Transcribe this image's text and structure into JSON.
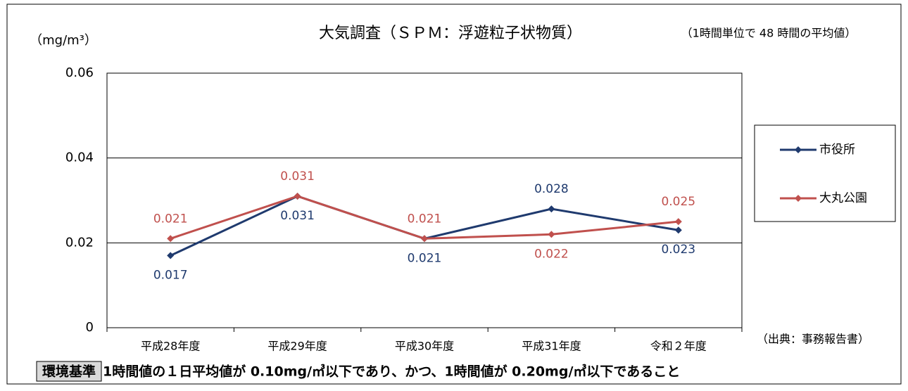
{
  "chart_data": {
    "type": "line",
    "title": "大気調査（ＳＰＭ：浮遊粒子状物質）",
    "subtitle": "（1時間単位で 48 時間の平均値）",
    "y_label": "（mg/m³）",
    "source": "（出典：事務報告書）",
    "note_tag": "環境基準",
    "note": "1時間値の１日平均値が 0.10mg/㎥以下であり、かつ、1時間値が 0.20mg/㎥以下であること",
    "categories": [
      "平成28年度",
      "平成29年度",
      "平成30年度",
      "平成31年度",
      "令和２年度"
    ],
    "series": [
      {
        "name": "市役所",
        "color": "#1f3a6e",
        "values": [
          0.017,
          0.031,
          0.021,
          0.028,
          0.023
        ]
      },
      {
        "name": "大丸公園",
        "color": "#c0504d",
        "values": [
          0.021,
          0.031,
          0.021,
          0.022,
          0.025
        ]
      }
    ],
    "ylim": [
      0,
      0.06
    ],
    "yticks": [
      0,
      0.02,
      0.04,
      0.06
    ],
    "grid": true,
    "legend": "right"
  }
}
